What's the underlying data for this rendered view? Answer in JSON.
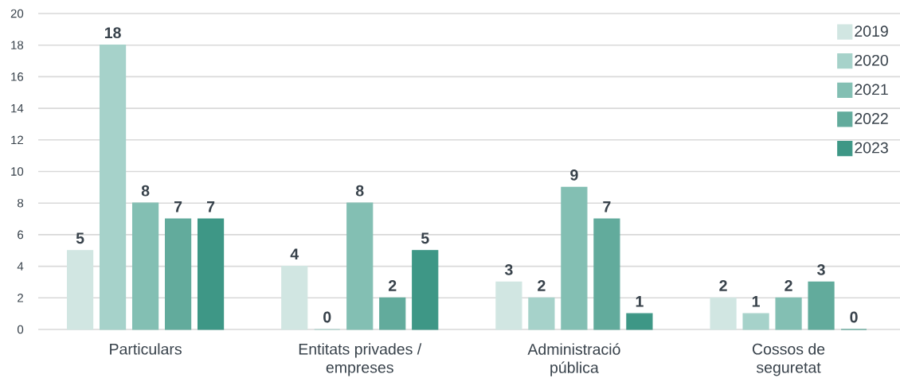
{
  "chart_data": {
    "type": "bar",
    "categories": [
      "Particulars",
      "Entitats privades / empreses",
      "Administració pública",
      "Cossos de seguretat"
    ],
    "series": [
      {
        "name": "2019",
        "color": "#d1e6e2",
        "values": [
          5,
          4,
          3,
          2
        ]
      },
      {
        "name": "2020",
        "color": "#a6d2ca",
        "values": [
          18,
          0,
          2,
          1
        ]
      },
      {
        "name": "2021",
        "color": "#83bfb3",
        "values": [
          8,
          8,
          9,
          2
        ]
      },
      {
        "name": "2022",
        "color": "#62ab9c",
        "values": [
          7,
          2,
          7,
          3
        ]
      },
      {
        "name": "2023",
        "color": "#3e9786",
        "values": [
          7,
          5,
          1,
          0
        ]
      }
    ],
    "ylim": [
      0,
      20
    ],
    "yticks": [
      0,
      2,
      4,
      6,
      8,
      10,
      12,
      14,
      16,
      18,
      20
    ],
    "grid": "y",
    "legend": "top right",
    "data_labels": true
  }
}
